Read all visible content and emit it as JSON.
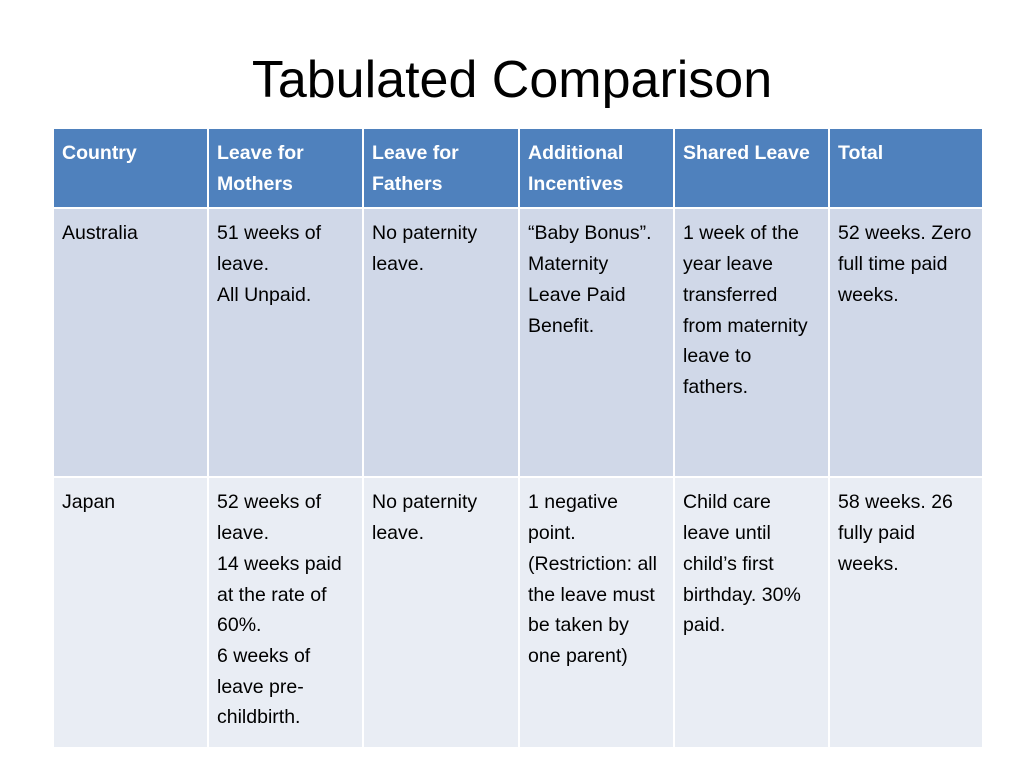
{
  "title": "Tabulated Comparison",
  "table": {
    "headers": [
      "Country",
      "Leave for Mothers",
      "Leave for Fathers",
      "Additional Incentives",
      "Shared Leave",
      "Total"
    ],
    "rows": [
      {
        "country": "Australia",
        "mothers": "51 weeks of leave.\nAll Unpaid.",
        "fathers": "No paternity leave.",
        "incentives": "“Baby Bonus”. Maternity Leave Paid Benefit.",
        "shared": "1 week of the year leave transferred from maternity leave to fathers.",
        "total": "52 weeks. Zero full time paid weeks."
      },
      {
        "country": "Japan",
        "mothers": "52 weeks of leave.\n14 weeks paid at the rate of 60%.\n6 weeks of leave pre-childbirth.",
        "fathers": "No paternity leave.",
        "incentives": "1 negative point. (Restriction: all the leave must be taken by one parent)",
        "shared": "Child care leave until child’s first birthday. 30% paid.",
        "total": "58 weeks. 26 fully paid weeks."
      }
    ]
  },
  "colors": {
    "header_bg": "#4f81bd",
    "row_odd_bg": "#d0d8e8",
    "row_even_bg": "#e9edf4"
  }
}
